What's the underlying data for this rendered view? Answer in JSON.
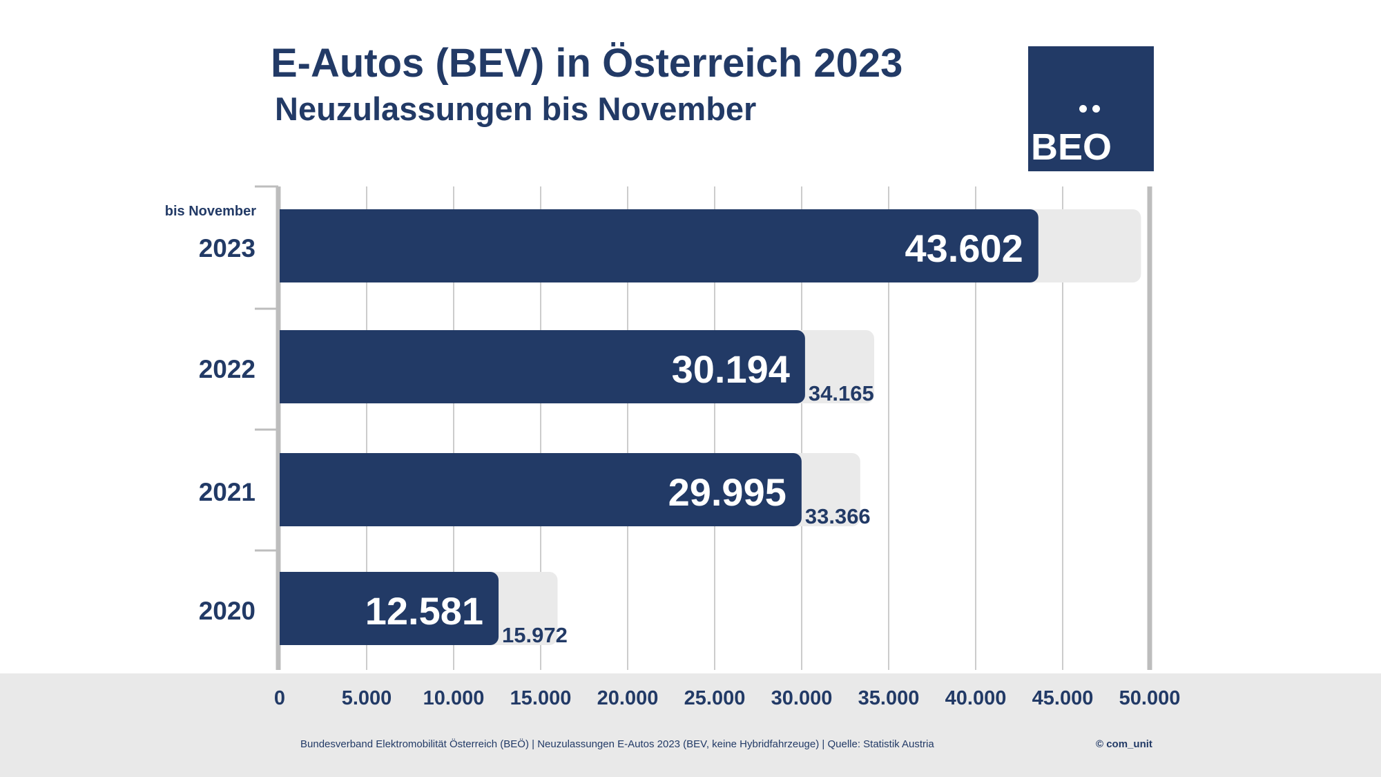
{
  "header": {
    "title": "E-Autos (BEV) in Österreich 2023",
    "subtitle": "Neuzulassungen bis November"
  },
  "logo": {
    "text": "BEO",
    "dots": "..",
    "bg_color": "#223a66"
  },
  "footer": {
    "source": "Bundesverband Elektromobilität Österreich (BEÖ) | Neuzulassungen E-Autos 2023 (BEV, keine Hybridfahrzeuge) | Quelle: Statistik Austria",
    "copyright": "© com_unit"
  },
  "colors": {
    "primary": "#223a66",
    "secondary": "#eaeaea",
    "grid": "#cccccc",
    "axis": "#bdbdbd"
  },
  "chart_data": {
    "type": "bar",
    "orientation": "horizontal",
    "title": "E-Autos (BEV) in Österreich 2023",
    "subtitle": "Neuzulassungen bis November",
    "categories": [
      "2023",
      "2022",
      "2021",
      "2020"
    ],
    "category_notes": [
      "bis November",
      "",
      "",
      ""
    ],
    "series": [
      {
        "name": "",
        "values": [
          43602,
          30194,
          29995,
          12581
        ],
        "labels": [
          "43.602",
          "30.194",
          "29.995",
          "12.581"
        ]
      },
      {
        "name": "",
        "values": [
          49500,
          34165,
          33366,
          15972
        ],
        "labels": [
          "",
          "34.165",
          "33.366",
          "15.972"
        ]
      }
    ],
    "xlim": [
      0,
      50000
    ],
    "xticks": [
      0,
      5000,
      10000,
      15000,
      20000,
      25000,
      30000,
      35000,
      40000,
      45000,
      50000
    ],
    "xtick_labels": [
      "0",
      "5.000",
      "10.000",
      "15.000",
      "20.000",
      "25.000",
      "30.000",
      "35.000",
      "40.000",
      "45.000",
      "50.000"
    ],
    "grid": "vertical",
    "legend": "none"
  }
}
